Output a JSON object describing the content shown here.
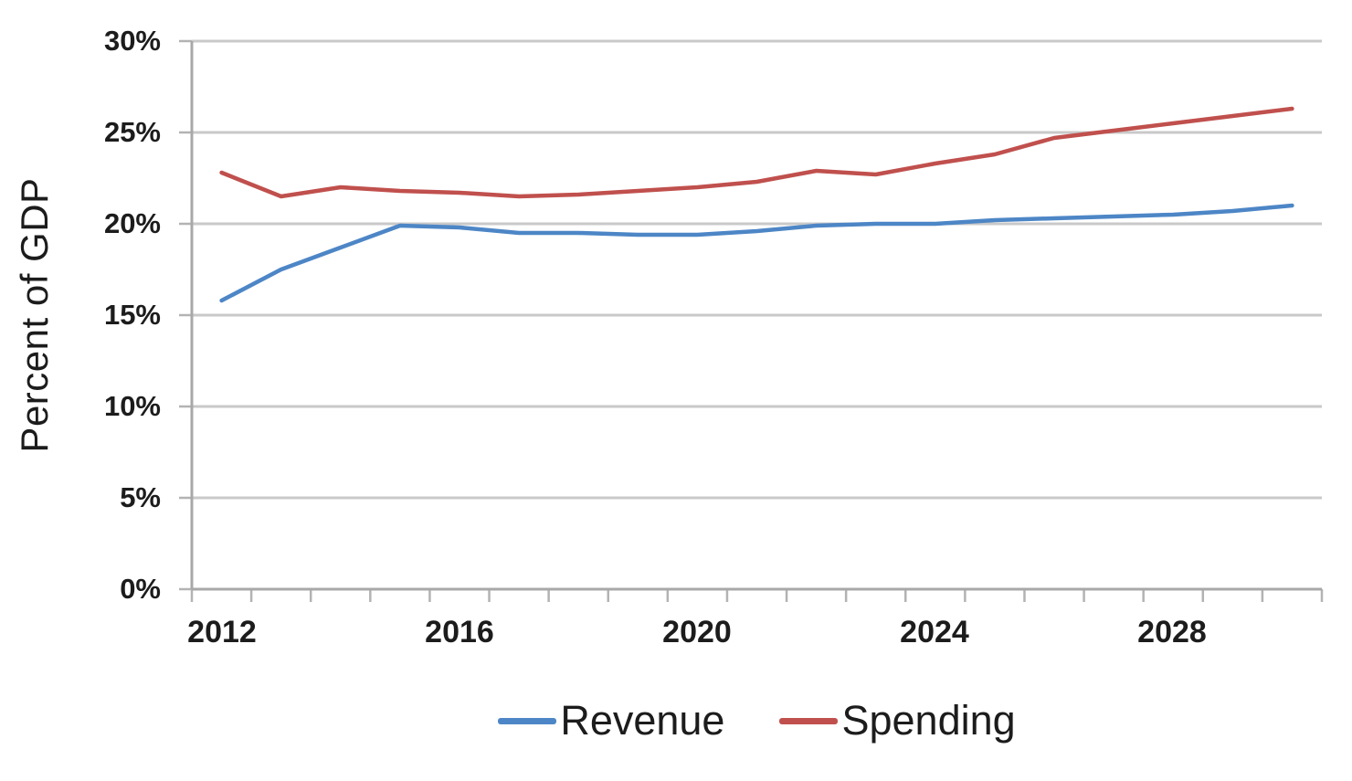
{
  "chart_data": {
    "type": "line",
    "ylabel": "Percent of GDP",
    "x": [
      2012,
      2013,
      2014,
      2015,
      2016,
      2017,
      2018,
      2019,
      2020,
      2021,
      2022,
      2023,
      2024,
      2025,
      2026,
      2027,
      2028,
      2029,
      2030
    ],
    "series": [
      {
        "name": "Revenue",
        "color": "#4d86c6",
        "values": [
          15.8,
          17.5,
          18.7,
          19.9,
          19.8,
          19.5,
          19.5,
          19.4,
          19.4,
          19.6,
          19.9,
          20.0,
          20.0,
          20.2,
          20.3,
          20.4,
          20.5,
          20.7,
          21.0
        ]
      },
      {
        "name": "Spending",
        "color": "#c0504d",
        "values": [
          22.8,
          21.5,
          22.0,
          21.8,
          21.7,
          21.5,
          21.6,
          21.8,
          22.0,
          22.3,
          22.9,
          22.7,
          23.3,
          23.8,
          24.7,
          25.1,
          25.5,
          25.9,
          26.3
        ]
      }
    ],
    "ylim": [
      0,
      30
    ],
    "y_ticks": [
      "30%",
      "25%",
      "20%",
      "15%",
      "10%",
      "5%",
      "0%"
    ],
    "x_tick_labels": [
      "2012",
      "2016",
      "2020",
      "2024",
      "2028"
    ],
    "grid": true,
    "legend_position": "bottom"
  },
  "colors": {
    "gridline": "#c9c9c9",
    "axis": "#a8a8a8",
    "tick": "#b3b3b3",
    "text": "#1c1c1c",
    "background": "#ffffff"
  }
}
